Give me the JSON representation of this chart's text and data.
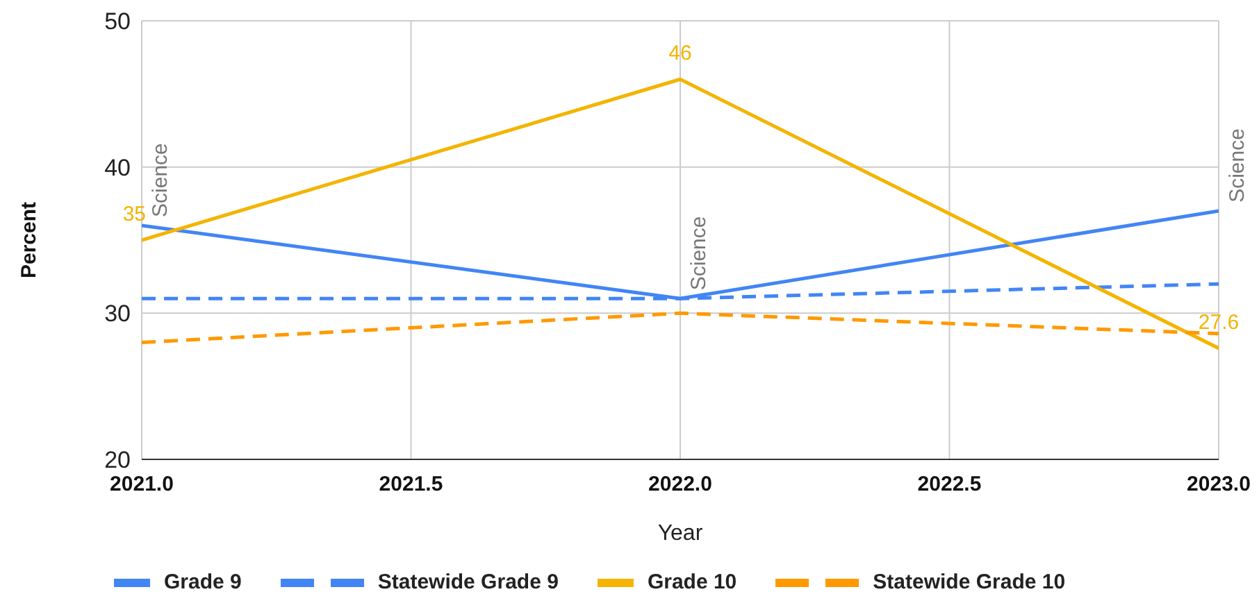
{
  "chart_data": {
    "type": "line",
    "xlabel": "Year",
    "ylabel": "Percent",
    "x": [
      2021,
      2022,
      2023
    ],
    "series": [
      {
        "name": "Grade 9",
        "color": "#4285f4",
        "values": [
          36,
          31,
          37
        ]
      },
      {
        "name": "Statewide Grade 9",
        "color": "#4285f4",
        "values": [
          31,
          31,
          32
        ],
        "line_style": "dashed"
      },
      {
        "name": "Grade 10",
        "color": "#f4b400",
        "values": [
          35,
          46,
          27.6
        ],
        "value_labels": [
          "35",
          "46",
          "27.6"
        ]
      },
      {
        "name": "Statewide Grade 10",
        "color": "#ff9900",
        "values": [
          28,
          30,
          28.6
        ],
        "line_style": "dashed"
      }
    ],
    "annotations": [
      {
        "text": "Science",
        "x": 2021,
        "y": 36
      },
      {
        "text": "Science",
        "x": 2022,
        "y": 31
      },
      {
        "text": "Science",
        "x": 2023,
        "y": 37
      }
    ],
    "xlim": [
      2021,
      2023
    ],
    "xticks": [
      {
        "value": 2021,
        "label": "2021.0"
      },
      {
        "value": 2021.5,
        "label": "2021.5"
      },
      {
        "value": 2022,
        "label": "2022.0"
      },
      {
        "value": 2022.5,
        "label": "2022.5"
      },
      {
        "value": 2023,
        "label": "2023.0"
      }
    ],
    "ylim": [
      20,
      50
    ],
    "yticks": [
      20,
      30,
      40,
      50
    ],
    "grid": true,
    "legend": "bottom",
    "marker": "none",
    "line_style": "solid"
  }
}
